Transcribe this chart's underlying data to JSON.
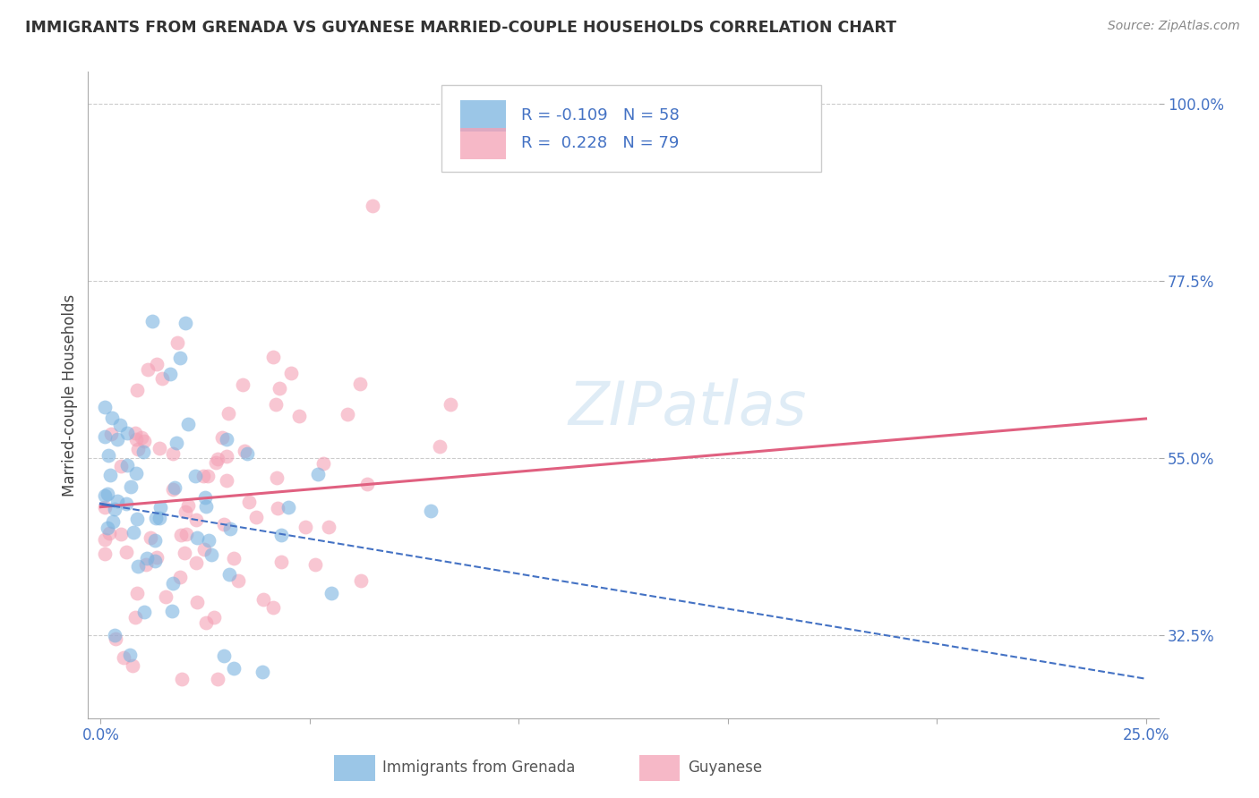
{
  "title": "IMMIGRANTS FROM GRENADA VS GUYANESE MARRIED-COUPLE HOUSEHOLDS CORRELATION CHART",
  "source": "Source: ZipAtlas.com",
  "ylabel": "Married-couple Households",
  "xlim": [
    -0.003,
    0.253
  ],
  "ylim": [
    0.22,
    1.04
  ],
  "ytick_positions": [
    0.325,
    0.55,
    0.775,
    1.0
  ],
  "ytick_labels": [
    "32.5%",
    "55.0%",
    "77.5%",
    "100.0%"
  ],
  "xtick_positions": [
    0.0,
    0.05,
    0.1,
    0.15,
    0.2,
    0.25
  ],
  "xticklabels": [
    "0.0%",
    "",
    "",
    "",
    "",
    "25.0%"
  ],
  "legend_R1": "-0.109",
  "legend_N1": "58",
  "legend_R2": "0.228",
  "legend_N2": "79",
  "blue_color": "#7ab3e0",
  "pink_color": "#f4a0b5",
  "blue_line_color": "#4472c4",
  "pink_line_color": "#e06080",
  "watermark_text": "ZIPatlas",
  "blue_seed": 10,
  "pink_seed": 20,
  "blue_line_x": [
    0.0,
    0.25
  ],
  "blue_line_y": [
    0.492,
    0.27
  ],
  "pink_line_x": [
    0.0,
    0.25
  ],
  "pink_line_y": [
    0.488,
    0.6
  ]
}
